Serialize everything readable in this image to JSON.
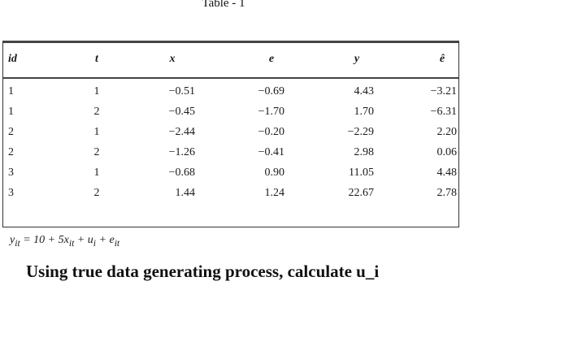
{
  "caption": "Table - 1",
  "table": {
    "headers": [
      "id",
      "t",
      "x",
      "e",
      "y",
      "ê"
    ],
    "rows": [
      [
        "1",
        "1",
        "−0.51",
        "−0.69",
        "4.43",
        "−3.21"
      ],
      [
        "1",
        "2",
        "−0.45",
        "−1.70",
        "1.70",
        "−6.31"
      ],
      [
        "2",
        "1",
        "−2.44",
        "−0.20",
        "−2.29",
        "2.20"
      ],
      [
        "2",
        "2",
        "−1.26",
        "−0.41",
        "2.98",
        "0.06"
      ],
      [
        "3",
        "1",
        "−0.68",
        "0.90",
        "11.05",
        "4.48"
      ],
      [
        "3",
        "2",
        "1.44",
        "1.24",
        "22.67",
        "2.78"
      ]
    ]
  },
  "equation": {
    "y": "y",
    "y_sub": "it",
    "eq": " = 10 + 5",
    "x": "x",
    "x_sub": "it",
    "plus1": " + ",
    "u": "u",
    "u_sub": "i",
    "plus2": " + ",
    "e": "e",
    "e_sub": "it"
  },
  "question": "Using true data generating process, calculate u_i"
}
